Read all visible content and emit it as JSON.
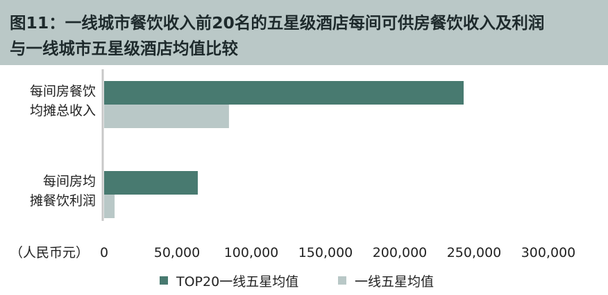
{
  "title": {
    "line1": "图11：一线城市餐饮收入前20名的五星级酒店每间可供房餐饮收入及利润",
    "line2": "与一线城市五星级酒店均值比较"
  },
  "colors": {
    "header_bg": "#bac8c7",
    "series_top20": "#487a70",
    "series_avg": "#b9c8c7",
    "axis": "#c8c8c8"
  },
  "chart_data": {
    "type": "bar",
    "orientation": "horizontal",
    "categories": [
      [
        "每间房餐饮",
        "均摊总收入"
      ],
      [
        "每间房均",
        "摊餐饮利润"
      ]
    ],
    "series": [
      {
        "name": "TOP20一线五星均值",
        "values": [
          243000,
          64000
        ]
      },
      {
        "name": "一线五星均值",
        "values": [
          85000,
          8000
        ]
      }
    ],
    "xlim": [
      0,
      300000
    ],
    "xticks": [
      "0",
      "50,000",
      "100,000",
      "150,000",
      "200,000",
      "250,000",
      "300,000"
    ],
    "xtick_values": [
      0,
      50000,
      100000,
      150000,
      200000,
      250000,
      300000
    ],
    "unit_label": "（人民币元）",
    "legend_position": "bottom",
    "grid": false
  }
}
